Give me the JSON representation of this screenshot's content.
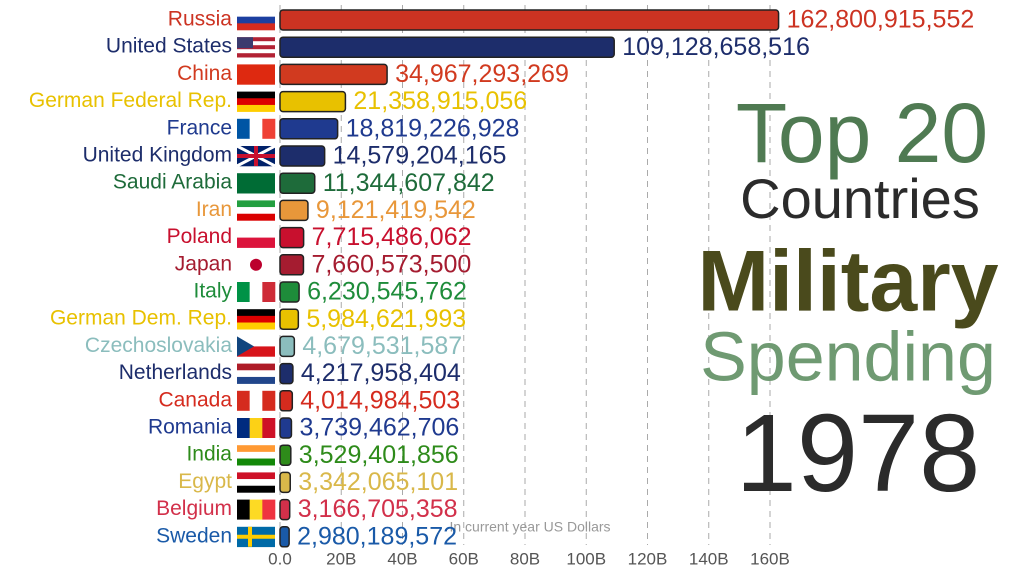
{
  "chart_data": {
    "type": "hbar",
    "title": [
      "Top 20",
      "Countries",
      "Military",
      "Spending",
      "1978"
    ],
    "x_label": "In current year US Dollars",
    "categories": [
      "Russia",
      "United States",
      "China",
      "German Federal Rep.",
      "France",
      "United Kingdom",
      "Saudi Arabia",
      "Iran",
      "Poland",
      "Japan",
      "Italy",
      "German Dem. Rep.",
      "Czechoslovakia",
      "Netherlands",
      "Canada",
      "Romania",
      "India",
      "Egypt",
      "Belgium",
      "Sweden"
    ],
    "values": [
      162800915552,
      109128658516,
      34967293269,
      21358915056,
      18819226928,
      14579204165,
      11344607842,
      9121419542,
      7715486062,
      7660573500,
      6230545762,
      5984621993,
      4679531587,
      4217958404,
      4014984503,
      3739462706,
      3529401856,
      3342065101,
      3166705358,
      2980189572
    ],
    "value_labels": [
      "162,800,915,552",
      "109,128,658,516",
      "34,967,293,269",
      "21,358,915,056",
      "18,819,226,928",
      "14,579,204,165",
      "11,344,607,842",
      "9,121,419,542",
      "7,715,486,062",
      "7,660,573,500",
      "6,230,545,762",
      "5,984,621,993",
      "4,679,531,587",
      "4,217,958,404",
      "4,014,984,503",
      "3,739,462,706",
      "3,529,401,856",
      "3,342,065,101",
      "3,166,705,358",
      "2,980,189,572"
    ],
    "colors": [
      "#cc3322",
      "#1d2d6b",
      "#d13a1f",
      "#e8c100",
      "#1f3a8f",
      "#1d2d6b",
      "#1e6b3a",
      "#e8973a",
      "#c8102e",
      "#a51c30",
      "#1e8c3a",
      "#e8c100",
      "#8bbdbd",
      "#1d2d6b",
      "#d52b1e",
      "#1f3a8f",
      "#2e8b1a",
      "#d9b84a",
      "#d2304a",
      "#1a5aa8"
    ],
    "xlim": [
      0,
      240000000000
    ],
    "xticks": [
      {
        "value": 0,
        "label": "0.0"
      },
      {
        "value": 20000000000,
        "label": "20B"
      },
      {
        "value": 40000000000,
        "label": "40B"
      },
      {
        "value": 60000000000,
        "label": "60B"
      },
      {
        "value": 80000000000,
        "label": "80B"
      },
      {
        "value": 100000000000,
        "label": "100B"
      },
      {
        "value": 120000000000,
        "label": "120B"
      },
      {
        "value": 140000000000,
        "label": "140B"
      },
      {
        "value": 160000000000,
        "label": "160B"
      }
    ],
    "grid": true
  }
}
